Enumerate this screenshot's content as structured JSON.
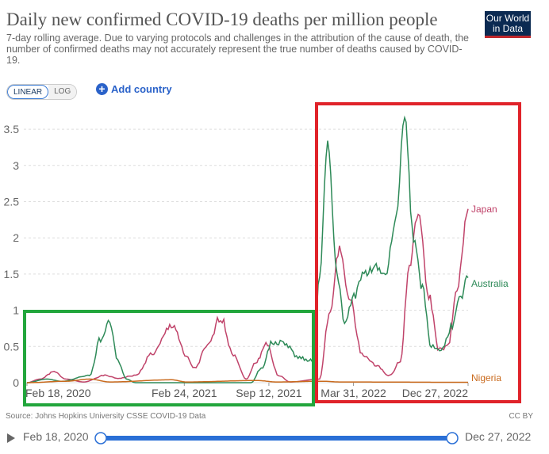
{
  "header": {
    "title": "Daily new confirmed COVID-19 deaths per million people",
    "subtitle": "7-day rolling average. Due to varying protocols and challenges in the attribution of the cause of death, the number of confirmed deaths may not accurately represent the true number of deaths caused by COVID-19.",
    "logo": "Our World in Data"
  },
  "controls": {
    "linear": "LINEAR",
    "log": "LOG",
    "add_country": "Add country"
  },
  "footer": {
    "source": "Source: Johns Hopkins University CSSE COVID-19 Data",
    "license": "CC BY"
  },
  "timeline": {
    "start": "Feb 18, 2020",
    "end": "Dec 27, 2022"
  },
  "chart_data": {
    "type": "line",
    "xlim": [
      "2020-02-18",
      "2022-12-27"
    ],
    "ylim": [
      0,
      3.6
    ],
    "yticks": [
      0,
      0.5,
      1,
      1.5,
      2,
      2.5,
      3,
      3.5
    ],
    "ytick_labels": [
      "0",
      "0.5",
      "1",
      "1.5",
      "2",
      "2.5",
      "3",
      "3.5"
    ],
    "xticks": [
      "2020-02-18",
      "2021-02-24",
      "2021-09-12",
      "2022-03-31",
      "2022-12-27"
    ],
    "xtick_labels": [
      "Feb 18, 2020",
      "Feb 24, 2021",
      "Sep 12, 2021",
      "Mar 31, 2022",
      "Dec 27, 2022"
    ],
    "grid": "horizontal dashed",
    "legend": "inline labels at right end",
    "series": [
      {
        "name": "Japan",
        "color": "#c0436a",
        "points": [
          [
            "2020-02-18",
            0
          ],
          [
            "2020-03-20",
            0.05
          ],
          [
            "2020-04-22",
            0.15
          ],
          [
            "2020-05-20",
            0.05
          ],
          [
            "2020-07-01",
            0.01
          ],
          [
            "2020-08-20",
            0.1
          ],
          [
            "2020-09-20",
            0.06
          ],
          [
            "2020-11-01",
            0.1
          ],
          [
            "2020-12-10",
            0.4
          ],
          [
            "2021-01-28",
            0.8
          ],
          [
            "2021-03-01",
            0.35
          ],
          [
            "2021-03-20",
            0.2
          ],
          [
            "2021-04-20",
            0.5
          ],
          [
            "2021-05-21",
            0.9
          ],
          [
            "2021-06-20",
            0.4
          ],
          [
            "2021-07-20",
            0.05
          ],
          [
            "2021-08-15",
            0.3
          ],
          [
            "2021-09-05",
            0.55
          ],
          [
            "2021-10-05",
            0.1
          ],
          [
            "2021-11-01",
            0.01
          ],
          [
            "2022-01-10",
            0.05
          ],
          [
            "2022-02-01",
            0.9
          ],
          [
            "2022-02-26",
            1.85
          ],
          [
            "2022-03-20",
            1.2
          ],
          [
            "2022-04-20",
            0.4
          ],
          [
            "2022-05-20",
            0.25
          ],
          [
            "2022-06-25",
            0.1
          ],
          [
            "2022-07-20",
            0.3
          ],
          [
            "2022-08-10",
            1.6
          ],
          [
            "2022-08-31",
            2.35
          ],
          [
            "2022-09-25",
            1.2
          ],
          [
            "2022-10-20",
            0.45
          ],
          [
            "2022-11-10",
            0.5
          ],
          [
            "2022-12-01",
            1.3
          ],
          [
            "2022-12-27",
            2.4
          ]
        ]
      },
      {
        "name": "Australia",
        "color": "#2e8a58",
        "points": [
          [
            "2020-02-18",
            0
          ],
          [
            "2020-04-05",
            0.05
          ],
          [
            "2020-05-10",
            0.02
          ],
          [
            "2020-07-15",
            0.1
          ],
          [
            "2020-08-10",
            0.6
          ],
          [
            "2020-09-01",
            0.85
          ],
          [
            "2020-09-20",
            0.3
          ],
          [
            "2020-10-10",
            0.05
          ],
          [
            "2020-11-01",
            0
          ],
          [
            "2021-08-01",
            0
          ],
          [
            "2021-08-25",
            0.2
          ],
          [
            "2021-09-20",
            0.55
          ],
          [
            "2021-10-20",
            0.55
          ],
          [
            "2021-11-20",
            0.35
          ],
          [
            "2021-12-27",
            0.3
          ],
          [
            "2022-01-10",
            1.5
          ],
          [
            "2022-01-29",
            3.35
          ],
          [
            "2022-02-20",
            1.5
          ],
          [
            "2022-03-10",
            0.8
          ],
          [
            "2022-04-01",
            1.2
          ],
          [
            "2022-04-25",
            1.5
          ],
          [
            "2022-05-20",
            1.6
          ],
          [
            "2022-06-15",
            1.5
          ],
          [
            "2022-07-10",
            2.3
          ],
          [
            "2022-07-30",
            3.7
          ],
          [
            "2022-08-20",
            2.0
          ],
          [
            "2022-09-10",
            1.3
          ],
          [
            "2022-10-01",
            0.5
          ],
          [
            "2022-10-25",
            0.45
          ],
          [
            "2022-11-20",
            0.8
          ],
          [
            "2022-12-10",
            1.2
          ],
          [
            "2022-12-27",
            1.45
          ]
        ]
      },
      {
        "name": "Nigeria",
        "color": "#c96a1d",
        "points": [
          [
            "2020-02-18",
            0
          ],
          [
            "2020-05-20",
            0.02
          ],
          [
            "2020-07-15",
            0.05
          ],
          [
            "2020-09-01",
            0.01
          ],
          [
            "2021-01-25",
            0.04
          ],
          [
            "2021-03-01",
            0.01
          ],
          [
            "2021-08-15",
            0.03
          ],
          [
            "2021-10-01",
            0.01
          ],
          [
            "2022-01-15",
            0.02
          ],
          [
            "2022-03-01",
            0.01
          ],
          [
            "2022-12-27",
            0.005
          ]
        ]
      }
    ]
  }
}
